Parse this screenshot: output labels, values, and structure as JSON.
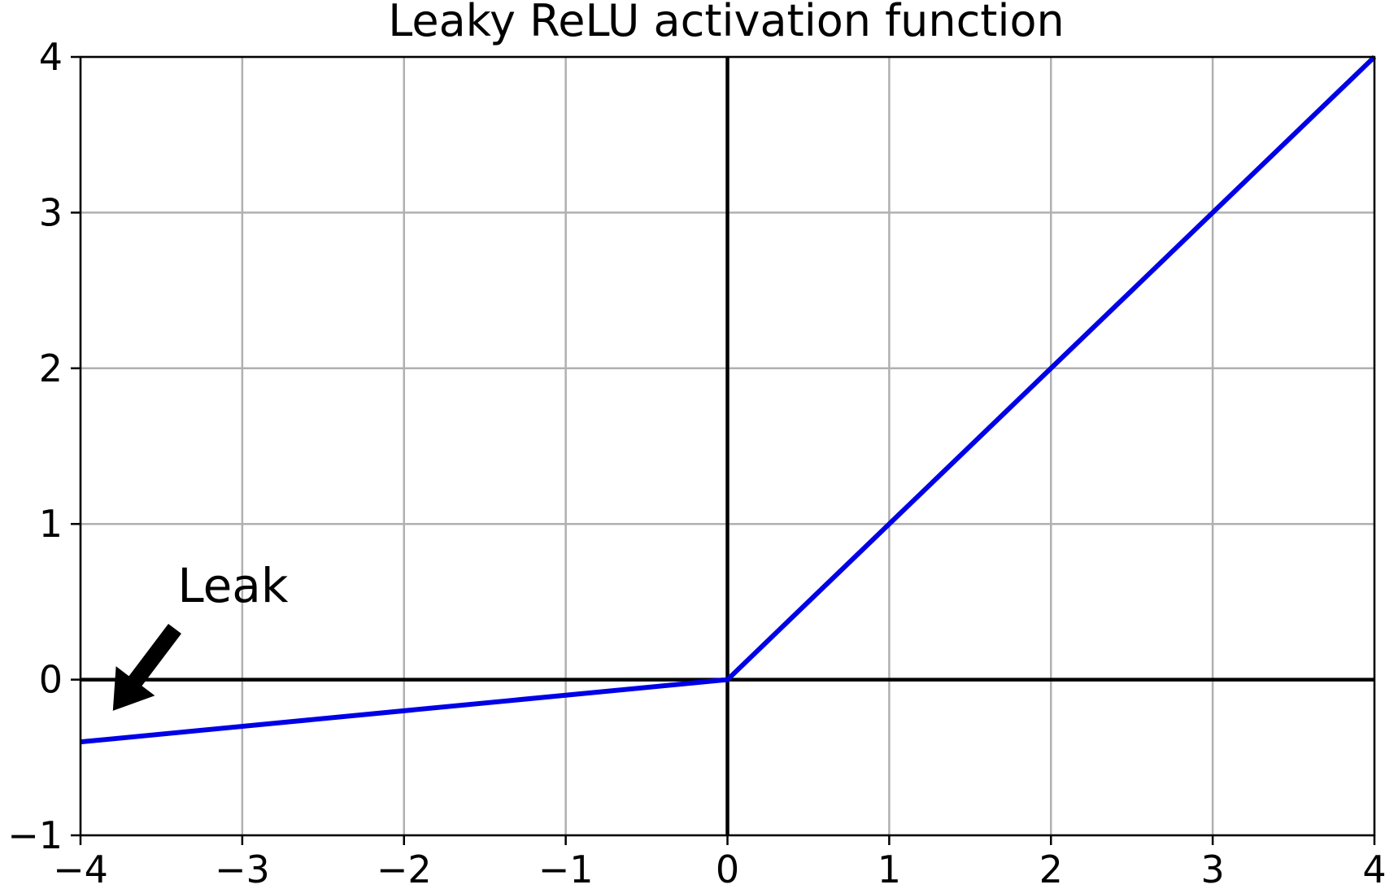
{
  "chart_data": {
    "type": "line",
    "title": "Leaky ReLU activation function",
    "xlabel": "",
    "ylabel": "",
    "xlim": [
      -4,
      4
    ],
    "ylim": [
      -1,
      4
    ],
    "grid": true,
    "x_ticks": [
      -4,
      -3,
      -2,
      -1,
      0,
      1,
      2,
      3,
      4
    ],
    "y_ticks": [
      -1,
      0,
      1,
      2,
      3,
      4
    ],
    "x_tick_labels": [
      "−4",
      "−3",
      "−2",
      "−1",
      "0",
      "1",
      "2",
      "3",
      "4"
    ],
    "y_tick_labels": [
      "−1",
      "0",
      "1",
      "2",
      "3",
      "4"
    ],
    "series": [
      {
        "x": [
          -4,
          0,
          4
        ],
        "y": [
          -0.4,
          0,
          4
        ],
        "color": "#0000e6"
      }
    ],
    "reference_lines": [
      {
        "orientation": "horizontal",
        "value": 0,
        "color": "#000000"
      },
      {
        "orientation": "vertical",
        "value": 0,
        "color": "#000000"
      }
    ],
    "annotations": [
      {
        "text": "Leak",
        "xy": [
          -3.8,
          -0.2
        ],
        "xytext": [
          -3.4,
          0.5
        ]
      }
    ],
    "colors": {
      "line": "#0000e6",
      "grid": "#b0b0b0",
      "axes": "#000000"
    }
  }
}
